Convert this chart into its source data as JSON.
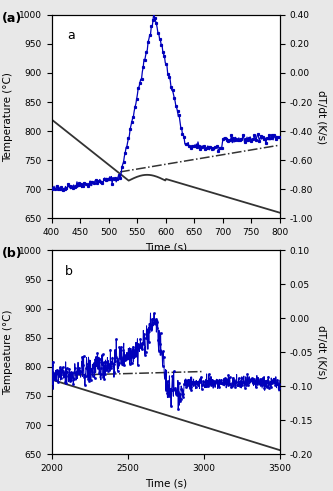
{
  "panel_a": {
    "label": "a",
    "xlabel": "Time (s)",
    "ylabel_left": "Temperature (°C)",
    "ylabel_right": "dT/dt (K/s)",
    "xlim": [
      400,
      800
    ],
    "ylim_left": [
      650,
      1000
    ],
    "ylim_right": [
      -1.0,
      0.4
    ],
    "xticks": [
      400,
      450,
      500,
      550,
      600,
      650,
      700,
      750,
      800
    ],
    "yticks_left": [
      650,
      700,
      750,
      800,
      850,
      900,
      950,
      1000
    ],
    "yticks_right": [
      -1.0,
      -0.8,
      -0.6,
      -0.4,
      -0.2,
      0.0,
      0.2,
      0.4
    ],
    "gray_line": {
      "start_x": 400,
      "start_y": 820,
      "bump_x": 535,
      "bump_y": 715,
      "bump_peak_x": 590,
      "bump_peak_y": 722,
      "end_x": 800,
      "end_y": 660
    },
    "blue_line_color": "#0000BB",
    "dash_line": {
      "x0": 520,
      "y0": 730,
      "x1": 800,
      "y1": 776
    }
  },
  "panel_b": {
    "label": "b",
    "xlabel": "Time (s)",
    "ylabel_left": "Tempeature (°C)",
    "ylabel_right": "dT/dt (K/s)",
    "xlim": [
      2000,
      3500
    ],
    "ylim_left": [
      650,
      1000
    ],
    "ylim_right": [
      -0.2,
      0.1
    ],
    "xticks": [
      2000,
      2500,
      3000,
      3500
    ],
    "yticks_left": [
      650,
      700,
      750,
      800,
      850,
      900,
      950,
      1000
    ],
    "yticks_right": [
      -0.2,
      -0.15,
      -0.1,
      -0.05,
      0.0,
      0.05,
      0.1
    ],
    "gray_line": {
      "start_x": 2000,
      "start_y": 778,
      "end_x": 3500,
      "end_y": 657
    },
    "blue_line_color": "#0000BB",
    "dash_line": {
      "x0": 2150,
      "y0": 786,
      "x1": 3000,
      "y1": 792
    }
  },
  "outer_label_a": "(a)",
  "outer_label_b": "(b)",
  "bg_color": "#e8e8e8"
}
